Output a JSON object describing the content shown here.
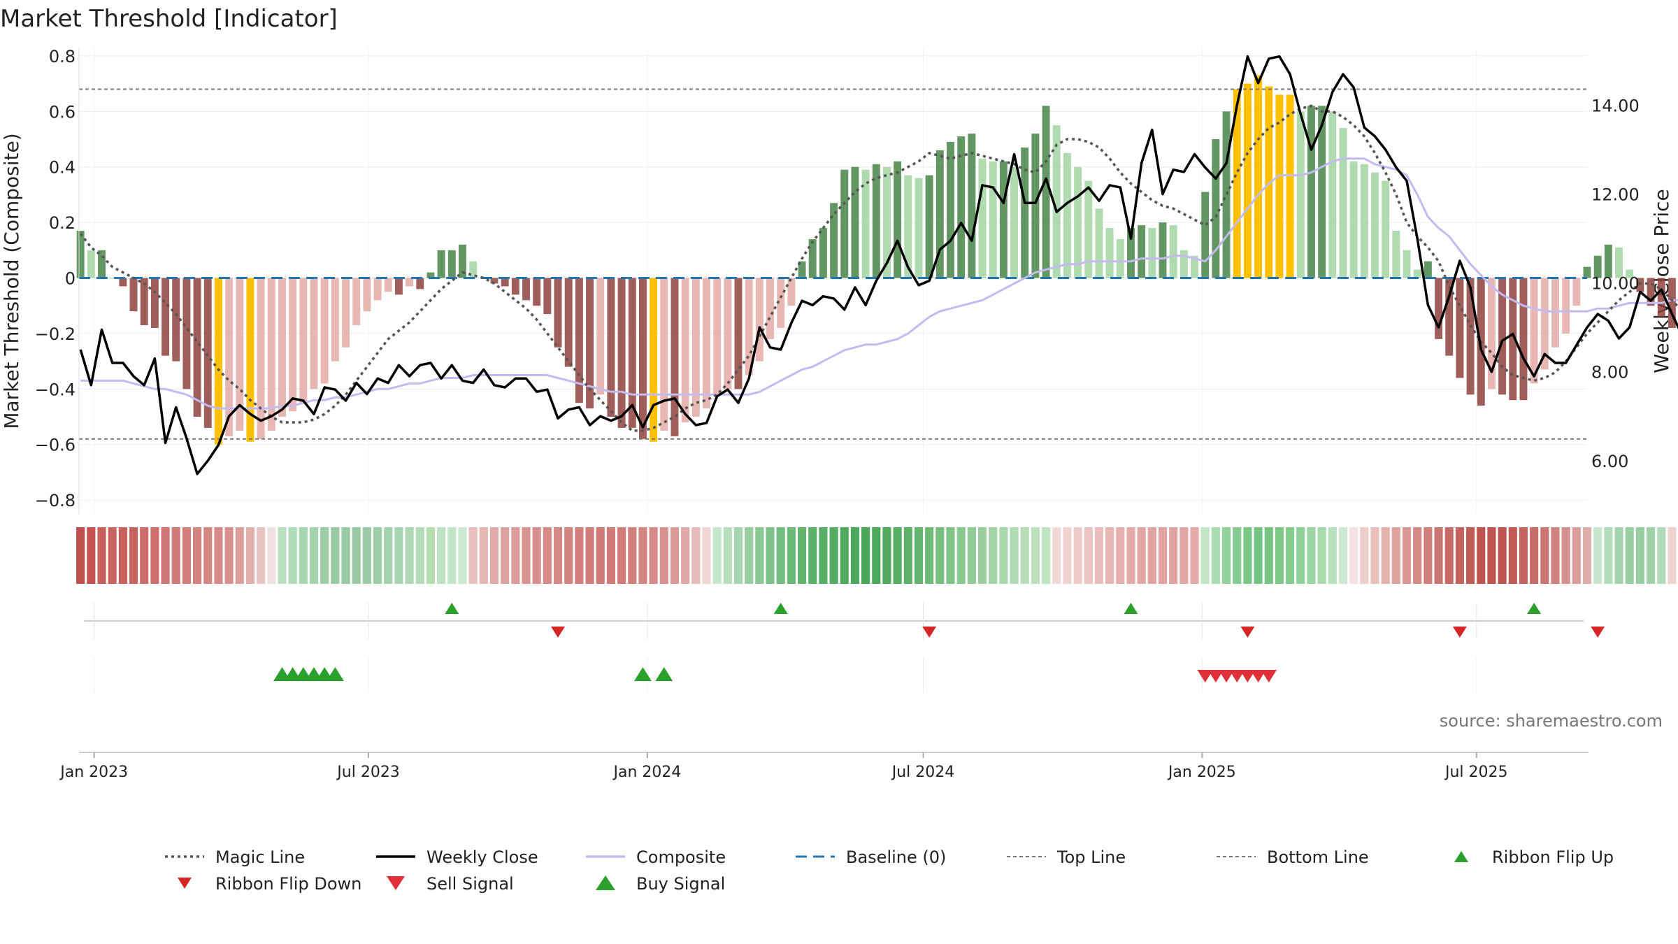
{
  "chart_data": {
    "type": "bar",
    "title": "Market Threshold [Indicator]",
    "ylabel_left": "Market Threshold (Composite)",
    "ylabel_right": "Weekly Close Price",
    "source": "source: sharemaestro.com",
    "ylim_left": [
      -0.85,
      0.83
    ],
    "ylim_right": [
      4.8,
      15.3
    ],
    "yticks_left": [
      {
        "value": 0.8,
        "label": "0.8"
      },
      {
        "value": 0.6,
        "label": "0.6"
      },
      {
        "value": 0.4,
        "label": "0.4"
      },
      {
        "value": 0.2,
        "label": "0.2"
      },
      {
        "value": 0,
        "label": "0"
      },
      {
        "value": -0.2,
        "label": "−0.2"
      },
      {
        "value": -0.4,
        "label": "−0.4"
      },
      {
        "value": -0.6,
        "label": "−0.6"
      },
      {
        "value": -0.8,
        "label": "−0.8"
      }
    ],
    "yticks_right": [
      {
        "value": 14,
        "label": "14.00"
      },
      {
        "value": 12,
        "label": "12.00"
      },
      {
        "value": 10,
        "label": "10.00"
      },
      {
        "value": 8,
        "label": "8.00"
      },
      {
        "value": 6,
        "label": "6.00"
      }
    ],
    "x_range": [
      "2022-12-22",
      "2025-09-12"
    ],
    "xticks": [
      {
        "date": "2023-01-01",
        "label": "Jan 2023"
      },
      {
        "date": "2023-07-01",
        "label": "Jul 2023"
      },
      {
        "date": "2024-01-01",
        "label": "Jan 2024"
      },
      {
        "date": "2024-07-01",
        "label": "Jul 2024"
      },
      {
        "date": "2025-01-01",
        "label": "Jan 2025"
      },
      {
        "date": "2025-07-01",
        "label": "Jul 2025"
      }
    ],
    "reference_lines": {
      "top": 0.68,
      "bottom": -0.58,
      "baseline": 0
    },
    "start_date": "2022-12-23",
    "week_step_days": 7,
    "series": [
      {
        "name": "Composite",
        "type": "bar",
        "values": [
          0.17,
          0.1,
          0.1,
          0.0,
          -0.03,
          -0.12,
          -0.17,
          -0.18,
          -0.28,
          -0.3,
          -0.4,
          -0.5,
          -0.54,
          -0.6,
          -0.57,
          -0.55,
          -0.59,
          -0.58,
          -0.55,
          -0.5,
          -0.48,
          -0.45,
          -0.4,
          -0.38,
          -0.3,
          -0.25,
          -0.17,
          -0.12,
          -0.08,
          -0.05,
          -0.06,
          -0.03,
          -0.04,
          0.02,
          0.1,
          0.1,
          0.12,
          0.06,
          0.0,
          -0.02,
          -0.03,
          -0.06,
          -0.08,
          -0.1,
          -0.13,
          -0.25,
          -0.32,
          -0.45,
          -0.47,
          -0.42,
          -0.5,
          -0.54,
          -0.54,
          -0.58,
          -0.59,
          -0.55,
          -0.57,
          -0.52,
          -0.5,
          -0.47,
          -0.42,
          -0.4,
          -0.4,
          -0.35,
          -0.3,
          -0.22,
          -0.18,
          -0.1,
          0.06,
          0.14,
          0.18,
          0.27,
          0.39,
          0.4,
          0.39,
          0.41,
          0.4,
          0.42,
          0.37,
          0.36,
          0.37,
          0.46,
          0.49,
          0.51,
          0.52,
          0.43,
          0.42,
          0.42,
          0.4,
          0.47,
          0.52,
          0.62,
          0.55,
          0.45,
          0.4,
          0.35,
          0.25,
          0.18,
          0.14,
          0.18,
          0.19,
          0.18,
          0.2,
          0.19,
          0.1,
          0.08,
          0.31,
          0.5,
          0.6,
          0.68,
          0.7,
          0.73,
          0.69,
          0.66,
          0.66,
          0.6,
          0.62,
          0.62,
          0.6,
          0.54,
          0.42,
          0.41,
          0.38,
          0.35,
          0.17,
          0.1,
          0.03,
          0.06,
          -0.22,
          -0.28,
          -0.36,
          -0.42,
          -0.46,
          -0.4,
          -0.42,
          -0.44,
          -0.44,
          -0.38,
          -0.33,
          -0.25,
          -0.2,
          -0.1,
          0.04,
          0.08,
          0.12,
          0.11,
          0.03,
          -0.05,
          -0.1,
          -0.14,
          -0.18,
          -0.2,
          -0.22,
          -0.29,
          -0.29,
          -0.22
        ]
      },
      {
        "name": "Weekly Close",
        "type": "line",
        "values": [
          8.5,
          7.7,
          8.95,
          8.2,
          8.2,
          7.9,
          7.7,
          8.3,
          6.4,
          7.2,
          6.5,
          5.7,
          6.0,
          6.35,
          7.0,
          7.25,
          7.05,
          6.9,
          7.0,
          7.15,
          7.4,
          7.35,
          7.05,
          7.65,
          7.6,
          7.35,
          7.75,
          7.5,
          7.85,
          7.75,
          8.15,
          7.9,
          8.15,
          8.2,
          7.85,
          8.15,
          7.8,
          7.75,
          8.05,
          7.7,
          7.65,
          7.85,
          7.85,
          7.55,
          7.6,
          6.95,
          7.15,
          7.2,
          6.8,
          7.0,
          6.9,
          7.0,
          7.25,
          6.75,
          7.25,
          7.35,
          7.4,
          7.05,
          6.8,
          6.85,
          7.45,
          7.6,
          7.3,
          7.85,
          9.0,
          8.55,
          8.5,
          9.1,
          9.6,
          9.5,
          9.7,
          9.65,
          9.4,
          9.9,
          9.5,
          10.05,
          10.45,
          10.95,
          10.35,
          9.95,
          10.05,
          10.75,
          10.95,
          11.35,
          10.95,
          12.2,
          12.15,
          11.8,
          12.9,
          11.8,
          11.8,
          12.35,
          11.6,
          11.8,
          11.95,
          12.15,
          11.85,
          12.2,
          12.15,
          11.0,
          12.7,
          13.45,
          12.0,
          12.55,
          12.5,
          12.9,
          12.6,
          12.35,
          12.7,
          14.0,
          15.1,
          14.5,
          15.05,
          15.1,
          14.7,
          13.8,
          13.0,
          13.55,
          14.3,
          14.7,
          14.4,
          13.5,
          13.3,
          13.0,
          12.6,
          12.3,
          11.0,
          9.5,
          9.0,
          9.7,
          10.5,
          9.9,
          8.5,
          8.0,
          8.7,
          8.85,
          8.3,
          7.9,
          8.4,
          8.2,
          8.2,
          8.6,
          9.0,
          9.3,
          9.15,
          8.75,
          9.0,
          9.8,
          9.6,
          9.85,
          9.3,
          8.8,
          8.35,
          8.7,
          8.8,
          8.65,
          9.05,
          10.0
        ]
      },
      {
        "name": "Magic Line",
        "type": "line",
        "axis": "left",
        "values": [
          0.16,
          0.11,
          0.08,
          0.04,
          0.02,
          0.0,
          -0.02,
          -0.05,
          -0.09,
          -0.13,
          -0.18,
          -0.23,
          -0.28,
          -0.33,
          -0.37,
          -0.4,
          -0.44,
          -0.47,
          -0.5,
          -0.52,
          -0.52,
          -0.52,
          -0.51,
          -0.49,
          -0.46,
          -0.42,
          -0.37,
          -0.32,
          -0.27,
          -0.22,
          -0.19,
          -0.16,
          -0.12,
          -0.08,
          -0.04,
          -0.01,
          0.02,
          0.01,
          0.0,
          -0.02,
          -0.05,
          -0.08,
          -0.11,
          -0.15,
          -0.2,
          -0.25,
          -0.3,
          -0.35,
          -0.4,
          -0.44,
          -0.48,
          -0.52,
          -0.55,
          -0.55,
          -0.54,
          -0.52,
          -0.5,
          -0.47,
          -0.45,
          -0.44,
          -0.42,
          -0.38,
          -0.33,
          -0.28,
          -0.21,
          -0.14,
          -0.07,
          -0.0,
          0.07,
          0.13,
          0.18,
          0.23,
          0.27,
          0.31,
          0.34,
          0.36,
          0.37,
          0.38,
          0.4,
          0.42,
          0.45,
          0.44,
          0.43,
          0.44,
          0.45,
          0.44,
          0.43,
          0.42,
          0.41,
          0.39,
          0.38,
          0.42,
          0.48,
          0.5,
          0.5,
          0.49,
          0.47,
          0.43,
          0.38,
          0.34,
          0.31,
          0.28,
          0.26,
          0.25,
          0.23,
          0.21,
          0.19,
          0.22,
          0.3,
          0.38,
          0.45,
          0.5,
          0.54,
          0.56,
          0.59,
          0.61,
          0.62,
          0.6,
          0.6,
          0.58,
          0.55,
          0.51,
          0.45,
          0.38,
          0.3,
          0.2,
          0.15,
          0.11,
          0.06,
          -0.03,
          -0.1,
          -0.17,
          -0.23,
          -0.27,
          -0.32,
          -0.35,
          -0.36,
          -0.37,
          -0.36,
          -0.34,
          -0.3,
          -0.25,
          -0.2,
          -0.16,
          -0.12,
          -0.08,
          -0.05,
          -0.02,
          -0.02,
          -0.04,
          -0.08,
          -0.12,
          -0.15,
          -0.17,
          -0.18,
          -0.19,
          -0.19
        ]
      },
      {
        "name": "Composite Smooth",
        "type": "line",
        "axis": "left",
        "values": [
          -0.37,
          -0.37,
          -0.37,
          -0.37,
          -0.37,
          -0.38,
          -0.39,
          -0.4,
          -0.4,
          -0.41,
          -0.42,
          -0.44,
          -0.46,
          -0.47,
          -0.47,
          -0.47,
          -0.47,
          -0.47,
          -0.47,
          -0.46,
          -0.46,
          -0.45,
          -0.44,
          -0.44,
          -0.43,
          -0.43,
          -0.42,
          -0.41,
          -0.4,
          -0.4,
          -0.39,
          -0.38,
          -0.38,
          -0.37,
          -0.36,
          -0.36,
          -0.36,
          -0.35,
          -0.35,
          -0.35,
          -0.35,
          -0.35,
          -0.35,
          -0.35,
          -0.35,
          -0.36,
          -0.37,
          -0.38,
          -0.39,
          -0.4,
          -0.41,
          -0.41,
          -0.42,
          -0.42,
          -0.42,
          -0.42,
          -0.42,
          -0.42,
          -0.42,
          -0.42,
          -0.42,
          -0.42,
          -0.42,
          -0.42,
          -0.41,
          -0.39,
          -0.37,
          -0.35,
          -0.33,
          -0.32,
          -0.3,
          -0.28,
          -0.26,
          -0.25,
          -0.24,
          -0.24,
          -0.23,
          -0.22,
          -0.2,
          -0.17,
          -0.14,
          -0.12,
          -0.11,
          -0.1,
          -0.09,
          -0.08,
          -0.06,
          -0.04,
          -0.02,
          0.0,
          0.02,
          0.03,
          0.04,
          0.05,
          0.05,
          0.06,
          0.06,
          0.06,
          0.06,
          0.06,
          0.07,
          0.07,
          0.07,
          0.08,
          0.08,
          0.07,
          0.06,
          0.1,
          0.15,
          0.2,
          0.25,
          0.3,
          0.34,
          0.37,
          0.37,
          0.37,
          0.38,
          0.4,
          0.42,
          0.43,
          0.43,
          0.43,
          0.41,
          0.4,
          0.39,
          0.37,
          0.3,
          0.22,
          0.18,
          0.15,
          0.1,
          0.05,
          0.01,
          -0.03,
          -0.06,
          -0.08,
          -0.1,
          -0.11,
          -0.12,
          -0.12,
          -0.12,
          -0.12,
          -0.12,
          -0.11,
          -0.11,
          -0.1,
          -0.09,
          -0.09,
          -0.09,
          -0.09,
          -0.08,
          -0.08,
          -0.09,
          -0.12,
          -0.14,
          -0.15,
          -0.16,
          -0.17,
          -0.17,
          -0.16
        ]
      }
    ],
    "ribbon": [
      "#c0504d",
      "#c55350",
      "#c9605d",
      "#c96461",
      "#c8615e",
      "#c8625f",
      "#cc6d6a",
      "#cd706d",
      "#cf7573",
      "#d17b78",
      "#d27e7b",
      "#d38380",
      "#d48682",
      "#d68b88",
      "#d8918f",
      "#dc9e9b",
      "#e1afad",
      "#e7c3c1",
      "#f0e0df",
      "#b9e1c1",
      "#b0dbb8",
      "#a9d6b1",
      "#a4d2ad",
      "#9dcda7",
      "#9acaa3",
      "#9ac9a3",
      "#9acaa3",
      "#9ccba5",
      "#a0cea9",
      "#a5d1ad",
      "#a9d4b1",
      "#aed8b5",
      "#b3dbba",
      "#b8deb0",
      "#bde2c4",
      "#c2e5c9",
      "#cde8d1",
      "#e8c1bf",
      "#e4b7b5",
      "#e0aba9",
      "#dea3a1",
      "#dc9c99",
      "#d99492",
      "#d7908d",
      "#d68b88",
      "#d48784",
      "#d38380",
      "#d27f7c",
      "#d17c79",
      "#d17b78",
      "#d17a77",
      "#d27c79",
      "#d37f7c",
      "#d48481",
      "#d68987",
      "#d9918f",
      "#dc9b99",
      "#e1a9a7",
      "#e6bcba",
      "#edd6d4",
      "#c7e7cd",
      "#b7dfbe",
      "#a6d6af",
      "#96ce9f",
      "#88c893",
      "#7cc289",
      "#72bd80",
      "#6ab977",
      "#62b46f",
      "#5cb16a",
      "#57ae66",
      "#53ac62",
      "#4fa95f",
      "#4ca85d",
      "#4ba75c",
      "#4da85d",
      "#51aa60",
      "#56ad64",
      "#5db16a",
      "#65b571",
      "#6eba78",
      "#77bf80",
      "#80c387",
      "#89c88f",
      "#92cc97",
      "#9bd09e",
      "#a3d4a5",
      "#aad7ac",
      "#b1dbb2",
      "#b7deb7",
      "#bde1bd",
      "#c2e3c2",
      "#f2d9d8",
      "#f0d2d0",
      "#eecbc9",
      "#ecc4c2",
      "#e9bdbb",
      "#e7b6b4",
      "#e5afad",
      "#e3aaa8",
      "#e2a6a4",
      "#e1a3a1",
      "#e1a2a0",
      "#e1a3a1",
      "#e2a6a4",
      "#e3aaa8",
      "#c1e6c6",
      "#a9dcb1",
      "#94d39d",
      "#85cc90",
      "#7bc786",
      "#76c481",
      "#78c583",
      "#7dc888",
      "#85cc8f",
      "#8fd198",
      "#9ad5a2",
      "#a7dbae",
      "#b7e2bd",
      "#cde9d2",
      "#f4e2e1",
      "#eececa",
      "#e9bfbb",
      "#e4b1ad",
      "#dea39f",
      "#d99692",
      "#d48a86",
      "#d07f7b",
      "#cb7571",
      "#c76b67",
      "#c4625f",
      "#c15b58",
      "#bf5552",
      "#be5350",
      "#bf5552",
      "#c15a57",
      "#c4625f",
      "#c86c69",
      "#cc7673",
      "#d08280",
      "#d5908d",
      "#da9e9b",
      "#dfadab",
      "#c8e7cd",
      "#b3dcba",
      "#a4d4ac",
      "#99cfa3",
      "#98cea2",
      "#a0d2a9",
      "#b2dbb9",
      "#efd3d1",
      "#ecc8c6",
      "#eac1bf",
      "#e8bfbd",
      "#e8c0be",
      "#e9c4c2",
      "#ebcbc9"
    ],
    "ribbon_flip_up_weeks": [
      35,
      66,
      99,
      137
    ],
    "ribbon_flip_down_weeks": [
      45,
      80,
      110,
      130,
      143
    ],
    "buy_signal_weeks": [
      19,
      20,
      21,
      22,
      23,
      24,
      53,
      55
    ],
    "sell_signal_weeks": [
      106,
      107,
      108,
      109,
      110,
      111,
      112
    ],
    "colors": {
      "bar_dark_green": "#3f7f3f",
      "bar_light_green": "#9fd39f",
      "bar_dark_red": "#8b3a36",
      "bar_light_red": "#e3a7a2",
      "bar_extreme": "#ffc000",
      "weekly_close": "#000000",
      "magic_line": "#555555",
      "composite_line": "#c3bbf0",
      "baseline": "#1f77b4",
      "top_bottom_line": "#777777",
      "signal_green": "#2ca02c",
      "signal_red": "#d62728",
      "sell_red": "#e0303a"
    },
    "legend": [
      {
        "label": "Magic Line",
        "icon": "dotted-line-icon"
      },
      {
        "label": "Weekly Close",
        "icon": "solid-line-icon"
      },
      {
        "label": "Composite",
        "icon": "lavender-line-icon"
      },
      {
        "label": "Baseline (0)",
        "icon": "dashed-line-icon"
      },
      {
        "label": "Top Line",
        "icon": "dotted-line-icon"
      },
      {
        "label": "Bottom Line",
        "icon": "dotted-line-icon"
      },
      {
        "label": "Ribbon Flip Up",
        "icon": "triangle-up-icon"
      },
      {
        "label": "Ribbon Flip Down",
        "icon": "triangle-down-icon"
      },
      {
        "label": "Sell Signal",
        "icon": "triangle-down-icon"
      },
      {
        "label": "Buy Signal",
        "icon": "triangle-up-icon"
      }
    ],
    "legend_placement": "bottom",
    "grid": true
  }
}
